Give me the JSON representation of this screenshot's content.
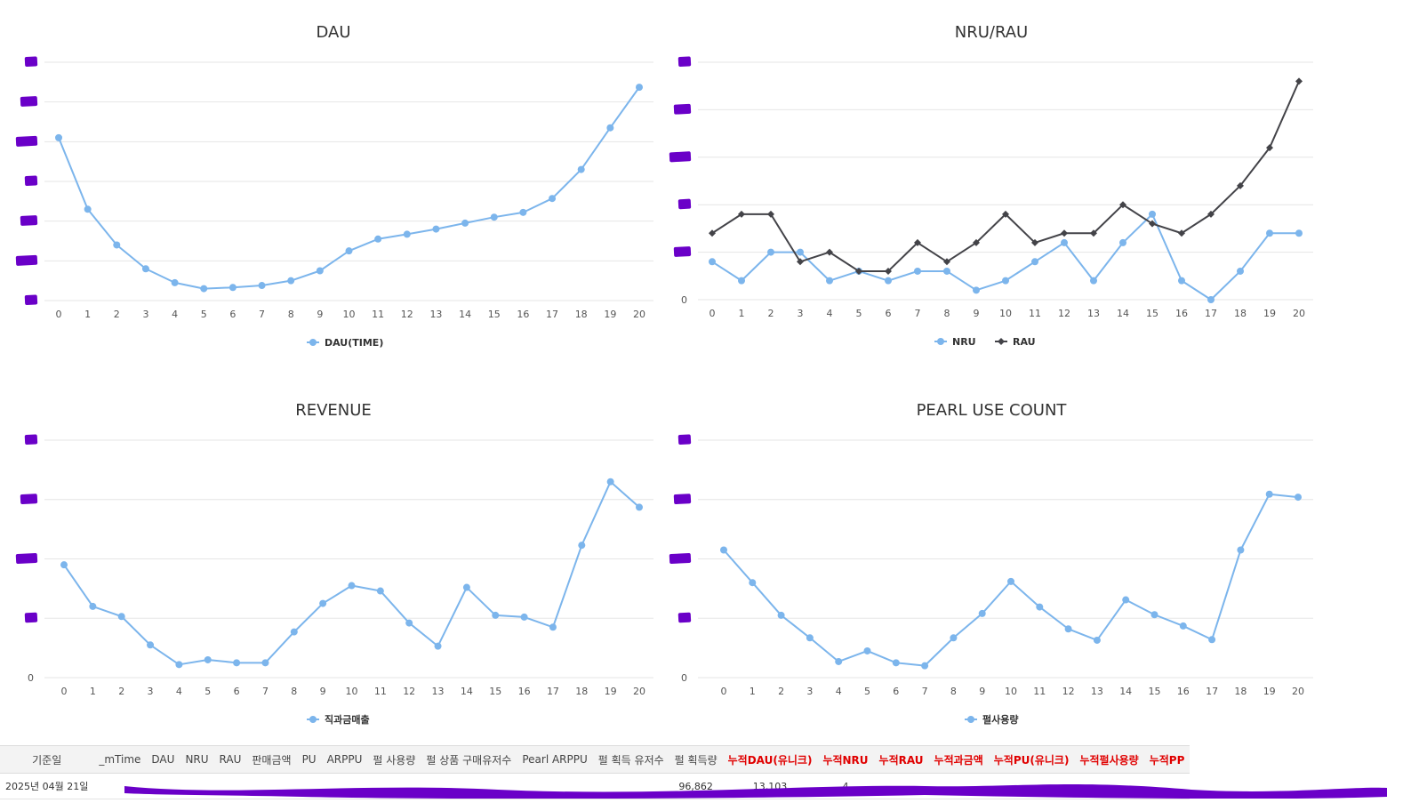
{
  "colors": {
    "light_series": "#7cb5ec",
    "dark_series": "#434348",
    "redaction": "#6a00c8",
    "cumulative_header": "#e00000"
  },
  "chart_data": [
    {
      "id": "dau",
      "type": "line",
      "title": "DAU",
      "x": [
        0,
        1,
        2,
        3,
        4,
        5,
        6,
        7,
        8,
        9,
        10,
        11,
        12,
        13,
        14,
        15,
        16,
        17,
        18,
        19,
        20
      ],
      "ylim": [
        0,
        6
      ],
      "ticks_redacted": true,
      "series": [
        {
          "name": "DAU(TIME)",
          "marker": "circle",
          "values": [
            4.1,
            2.3,
            1.4,
            0.8,
            0.45,
            0.3,
            0.33,
            0.38,
            0.5,
            0.75,
            1.25,
            1.55,
            1.67,
            1.8,
            1.95,
            2.1,
            2.22,
            2.57,
            3.3,
            4.35,
            5.37
          ]
        }
      ],
      "legend": "bottom"
    },
    {
      "id": "nru-rau",
      "type": "line",
      "title": "NRU/RAU",
      "x": [
        0,
        1,
        2,
        3,
        4,
        5,
        6,
        7,
        8,
        9,
        10,
        11,
        12,
        13,
        14,
        15,
        16,
        17,
        18,
        19,
        20
      ],
      "ylim": [
        0,
        25
      ],
      "y_ticks": [
        "0"
      ],
      "ticks_redacted": true,
      "series": [
        {
          "name": "NRU",
          "marker": "circle",
          "values": [
            4,
            2,
            5,
            5,
            2,
            3,
            2,
            3,
            3,
            1,
            2,
            4,
            6,
            2,
            6,
            9,
            2,
            0,
            3,
            7,
            7
          ]
        },
        {
          "name": "RAU",
          "marker": "diamond",
          "values": [
            7,
            9,
            9,
            4,
            5,
            3,
            3,
            6,
            4,
            6,
            9,
            6,
            7,
            7,
            10,
            8,
            7,
            9,
            12,
            16,
            23
          ]
        }
      ],
      "legend": "bottom"
    },
    {
      "id": "revenue",
      "type": "line",
      "title": "REVENUE",
      "x": [
        0,
        1,
        2,
        3,
        4,
        5,
        6,
        7,
        8,
        9,
        10,
        11,
        12,
        13,
        14,
        15,
        16,
        17,
        18,
        19,
        20
      ],
      "ylim": [
        0,
        4
      ],
      "y_ticks": [
        "0"
      ],
      "ticks_redacted": true,
      "series": [
        {
          "name": "직과금매출",
          "marker": "circle",
          "values": [
            1.9,
            1.2,
            1.03,
            0.55,
            0.22,
            0.3,
            0.25,
            0.25,
            0.77,
            1.25,
            1.55,
            1.46,
            0.92,
            0.53,
            1.52,
            1.05,
            1.02,
            0.85,
            2.23,
            3.3,
            2.87
          ]
        }
      ],
      "legend": "bottom"
    },
    {
      "id": "pearl-use-count",
      "type": "line",
      "title": "PEARL USE COUNT",
      "x": [
        0,
        1,
        2,
        3,
        4,
        5,
        6,
        7,
        8,
        9,
        10,
        11,
        12,
        13,
        14,
        15,
        16,
        17,
        18,
        19,
        20
      ],
      "ylim": [
        0,
        4
      ],
      "y_ticks": [
        "0"
      ],
      "ticks_redacted": true,
      "series": [
        {
          "name": "펄사용량",
          "marker": "circle",
          "values": [
            2.15,
            1.6,
            1.05,
            0.67,
            0.27,
            0.45,
            0.25,
            0.2,
            0.67,
            1.08,
            1.62,
            1.19,
            0.82,
            0.63,
            1.31,
            1.06,
            0.87,
            0.64,
            2.15,
            3.09,
            3.04
          ]
        }
      ],
      "legend": "bottom"
    }
  ],
  "table": {
    "headers": [
      {
        "label": "기준일",
        "cumulative": false
      },
      {
        "label": "_mTime",
        "cumulative": false
      },
      {
        "label": "DAU",
        "cumulative": false
      },
      {
        "label": "NRU",
        "cumulative": false
      },
      {
        "label": "RAU",
        "cumulative": false
      },
      {
        "label": "판매금액",
        "cumulative": false
      },
      {
        "label": "PU",
        "cumulative": false
      },
      {
        "label": "ARPPU",
        "cumulative": false
      },
      {
        "label": "펄 사용량",
        "cumulative": false
      },
      {
        "label": "펄 상품 구매유저수",
        "cumulative": false
      },
      {
        "label": "Pearl ARPPU",
        "cumulative": false
      },
      {
        "label": "펄 획득 유저수",
        "cumulative": false
      },
      {
        "label": "펄 획득량",
        "cumulative": false
      },
      {
        "label": "누적DAU(유니크)",
        "cumulative": true
      },
      {
        "label": "누적NRU",
        "cumulative": true
      },
      {
        "label": "누적RAU",
        "cumulative": true
      },
      {
        "label": "누적과금액",
        "cumulative": true
      },
      {
        "label": "누적PU(유니크)",
        "cumulative": true
      },
      {
        "label": "누적펄사용량",
        "cumulative": true
      },
      {
        "label": "누적PP",
        "cumulative": true
      }
    ],
    "row": [
      "2025년 04월 21일",
      "",
      "",
      "",
      "",
      "",
      "",
      "",
      "",
      "",
      "",
      "",
      "96,862",
      "13,103",
      "4",
      "",
      "",
      "",
      "",
      ""
    ],
    "row_redacted": true
  }
}
